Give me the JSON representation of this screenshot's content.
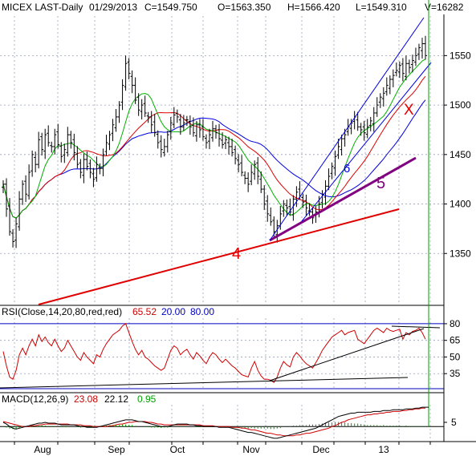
{
  "header": {
    "symbol": "MICEX LAST-Daily",
    "date": "01/29/2013",
    "close": "C=1549.750",
    "open": "O=1563.350",
    "high": "H=1566.420",
    "low": "L=1549.310",
    "volume": "V=16282"
  },
  "colors": {
    "grid": "#9aa0b8",
    "bars": "#000000",
    "ma_green": "#00b000",
    "ma_red": "#e00000",
    "ma_blue": "#0000e0",
    "trend_red": "#e00000",
    "trend_purple": "#800080",
    "channel_blue": "#0000e0",
    "rsi": "#d00000",
    "macd": "#000000",
    "signal": "#d00000",
    "hist": "#00a000",
    "axis_line": "#0000c0"
  },
  "chart_data": [
    {
      "type": "candlestick",
      "title": "MICEX LAST-Daily",
      "x_tick_labels": [
        "Aug",
        "Sep",
        "Oct",
        "Nov",
        "Dec",
        "13"
      ],
      "y_tick_labels": [
        "1550",
        "1500",
        "1450",
        "1400",
        "1350"
      ],
      "ylim": [
        1300,
        1590
      ],
      "grid": true,
      "bar_count": 132,
      "close_series": [
        1420,
        1395,
        1372,
        1362,
        1380,
        1405,
        1420,
        1410,
        1432,
        1450,
        1440,
        1465,
        1455,
        1470,
        1462,
        1458,
        1470,
        1460,
        1448,
        1455,
        1470,
        1462,
        1452,
        1440,
        1432,
        1445,
        1438,
        1432,
        1425,
        1440,
        1436,
        1450,
        1462,
        1470,
        1480,
        1488,
        1500,
        1520,
        1542,
        1532,
        1520,
        1505,
        1495,
        1500,
        1492,
        1488,
        1480,
        1472,
        1462,
        1455,
        1458,
        1470,
        1482,
        1490,
        1488,
        1478,
        1482,
        1485,
        1478,
        1472,
        1480,
        1475,
        1468,
        1462,
        1470,
        1476,
        1472,
        1466,
        1460,
        1465,
        1458,
        1452,
        1446,
        1440,
        1432,
        1426,
        1420,
        1432,
        1440,
        1428,
        1415,
        1400,
        1390,
        1382,
        1372,
        1378,
        1390,
        1400,
        1396,
        1392,
        1405,
        1412,
        1408,
        1402,
        1396,
        1392,
        1386,
        1392,
        1400,
        1410,
        1418,
        1428,
        1438,
        1448,
        1458,
        1466,
        1470,
        1478,
        1482,
        1488,
        1478,
        1475,
        1472,
        1478,
        1484,
        1492,
        1500,
        1508,
        1512,
        1520,
        1526,
        1530,
        1535,
        1540,
        1532,
        1542,
        1538,
        1545,
        1550,
        1558,
        1562,
        1550
      ],
      "annotations": [
        "4",
        "5",
        "6",
        "X"
      ]
    },
    {
      "type": "line",
      "title": "RSI(Close,14,20,80,red,red)",
      "values_label": [
        "65.52",
        "20.00",
        "80.00"
      ],
      "y_tick_labels": [
        "80",
        "65",
        "50",
        "35"
      ],
      "ylim": [
        20,
        85
      ],
      "series": [
        {
          "values": [
            55,
            42,
            32,
            30,
            38,
            52,
            58,
            52,
            60,
            66,
            60,
            70,
            64,
            68,
            63,
            60,
            66,
            60,
            55,
            58,
            65,
            60,
            55,
            50,
            47,
            54,
            50,
            47,
            44,
            52,
            50,
            57,
            62,
            66,
            70,
            72,
            74,
            78,
            80,
            72,
            64,
            57,
            52,
            56,
            50,
            48,
            45,
            42,
            40,
            38,
            40,
            48,
            56,
            60,
            58,
            52,
            55,
            57,
            52,
            48,
            54,
            51,
            47,
            44,
            50,
            54,
            52,
            48,
            45,
            48,
            45,
            42,
            40,
            37,
            34,
            33,
            32,
            40,
            46,
            38,
            33,
            30,
            30,
            29,
            27,
            32,
            40,
            46,
            43,
            41,
            50,
            54,
            51,
            47,
            44,
            42,
            40,
            45,
            50,
            56,
            60,
            64,
            68,
            70,
            72,
            74,
            70,
            72,
            73,
            74,
            66,
            64,
            62,
            66,
            70,
            74,
            76,
            74,
            72,
            76,
            74,
            73,
            74,
            75,
            66,
            72,
            70,
            73,
            74,
            76,
            72,
            66
          ]
        }
      ],
      "trendlines": 3
    },
    {
      "type": "line",
      "title": "MACD(12,26,9)",
      "values_label": [
        "23.08",
        "22.12",
        "0.95"
      ],
      "y_tick_labels": [
        "5"
      ],
      "series": [
        {
          "values": [
            5,
            3,
            0,
            -2,
            -3,
            -2,
            -1,
            0,
            1,
            2,
            3,
            4,
            4,
            5,
            4,
            4,
            4,
            3,
            2,
            2,
            2,
            2,
            2,
            1,
            0,
            0,
            -1,
            -1,
            -1,
            -1,
            0,
            1,
            2,
            3,
            4,
            5,
            6,
            7,
            8,
            8,
            8,
            7,
            6,
            6,
            5,
            4,
            3,
            2,
            1,
            0,
            0,
            0,
            1,
            2,
            3,
            3,
            3,
            3,
            2,
            2,
            1,
            1,
            0,
            0,
            0,
            0,
            0,
            -1,
            -1,
            -1,
            -1,
            -2,
            -3,
            -4,
            -5,
            -6,
            -7,
            -7,
            -8,
            -9,
            -10,
            -11,
            -12,
            -13,
            -14,
            -14,
            -13,
            -12,
            -11,
            -10,
            -9,
            -8,
            -7,
            -6,
            -5,
            -4,
            -3,
            -2,
            0,
            2,
            4,
            6,
            8,
            10,
            12,
            13,
            14,
            15,
            16,
            16,
            17,
            17,
            17,
            17,
            17,
            18,
            18,
            18,
            19,
            19,
            19,
            20,
            20,
            20,
            20,
            21,
            21,
            21,
            22,
            22,
            23,
            23,
            23
          ]
        },
        {
          "values": [
            6,
            5,
            4,
            3,
            2,
            1,
            0,
            0,
            0,
            1,
            1,
            2,
            2,
            3,
            3,
            3,
            3,
            3,
            3,
            3,
            3,
            2,
            2,
            2,
            2,
            1,
            1,
            1,
            0,
            0,
            0,
            0,
            0,
            1,
            1,
            2,
            3,
            3,
            4,
            5,
            5,
            6,
            6,
            6,
            6,
            5,
            5,
            4,
            3,
            3,
            2,
            2,
            2,
            2,
            2,
            2,
            2,
            2,
            2,
            2,
            2,
            2,
            1,
            1,
            1,
            1,
            0,
            0,
            0,
            0,
            0,
            -1,
            -1,
            -1,
            -2,
            -2,
            -3,
            -4,
            -4,
            -5,
            -6,
            -7,
            -8,
            -8,
            -9,
            -10,
            -10,
            -11,
            -11,
            -11,
            -11,
            -10,
            -10,
            -9,
            -8,
            -8,
            -7,
            -6,
            -5,
            -4,
            -3,
            -2,
            0,
            1,
            3,
            5,
            6,
            8,
            9,
            10,
            11,
            12,
            13,
            14,
            14,
            15,
            15,
            16,
            16,
            17,
            17,
            18,
            18,
            18,
            19,
            19,
            20,
            20,
            21,
            21,
            22,
            22
          ]
        }
      ]
    }
  ]
}
